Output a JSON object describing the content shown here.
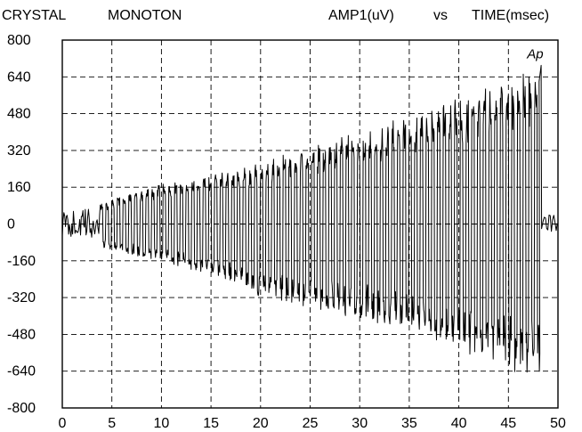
{
  "header": {
    "left_title": "CRYSTAL",
    "middle_title": "MONOTON",
    "y_quantity": "AMP1(uV)",
    "vs": "vs",
    "x_quantity": "TIME(msec)"
  },
  "chart_data": {
    "type": "line",
    "title": "CRYSTAL MONOTON",
    "ylabel": "AMP1(uV)",
    "xlabel": "TIME(msec)",
    "xlim": [
      0,
      50
    ],
    "ylim": [
      -800,
      800
    ],
    "x_ticks": [
      "0",
      "5",
      "10",
      "15",
      "20",
      "25",
      "30",
      "35",
      "40",
      "45",
      "50"
    ],
    "y_ticks": [
      "800",
      "640",
      "480",
      "320",
      "160",
      "0",
      "-160",
      "-320",
      "-480",
      "-640",
      "-800"
    ],
    "grid": "dashed",
    "annotation": "Ap",
    "annotation_position": {
      "x": 47.7,
      "y": 720
    },
    "envelope": {
      "time_ms": [
        0,
        3,
        5,
        10,
        15,
        20,
        25,
        30,
        35,
        40,
        45,
        47,
        48.5
      ],
      "upper_uV": [
        60,
        80,
        110,
        180,
        220,
        270,
        340,
        410,
        480,
        560,
        650,
        680,
        700
      ],
      "lower_uV": [
        -70,
        -90,
        -120,
        -170,
        -230,
        -330,
        -380,
        -430,
        -480,
        -560,
        -640,
        -660,
        -650
      ]
    },
    "oscillation": {
      "start_ms": 3.8,
      "end_ms": 48.2,
      "cycles": 77
    },
    "tail": {
      "start_ms": 48.2,
      "end_ms": 50,
      "value_uV": 0
    },
    "colors": {
      "trace": "#000000",
      "grid": "#000000",
      "background": "#ffffff"
    }
  }
}
